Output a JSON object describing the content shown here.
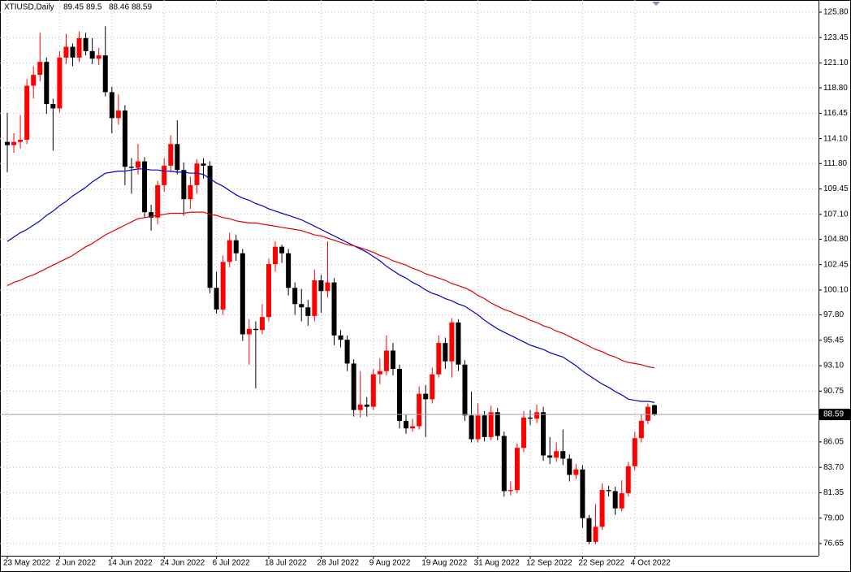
{
  "chart_data": {
    "type": "candlestick",
    "title": "XTIUSD,Daily",
    "categories": [
      "23 May 2022",
      null,
      null,
      null,
      null,
      null,
      null,
      null,
      "2 Jun 2022",
      null,
      null,
      null,
      null,
      null,
      null,
      null,
      "14 Jun 2022",
      null,
      null,
      null,
      null,
      null,
      null,
      null,
      "24 Jun 2022",
      null,
      null,
      null,
      null,
      null,
      null,
      null,
      "6 Jul 2022",
      null,
      null,
      null,
      null,
      null,
      null,
      null,
      "18 Jul 2022",
      null,
      null,
      null,
      null,
      null,
      null,
      null,
      "28 Jul 2022",
      null,
      null,
      null,
      null,
      null,
      null,
      null,
      "9 Aug 2022",
      null,
      null,
      null,
      null,
      null,
      null,
      null,
      "19 Aug 2022",
      null,
      null,
      null,
      null,
      null,
      null,
      null,
      "31 Aug 2022",
      null,
      null,
      null,
      null,
      null,
      null,
      null,
      "12 Sep 2022",
      null,
      null,
      null,
      null,
      null,
      null,
      null,
      "22 Sep 2022",
      null,
      null,
      null,
      null,
      null,
      null,
      null,
      "4 Oct 2022",
      null,
      null,
      null
    ],
    "open": [
      113.8,
      113.5,
      113.8,
      114.0,
      119.0,
      120.0,
      121.2,
      117.3,
      116.9,
      121.6,
      122.6,
      121.6,
      123.4,
      122.2,
      121.5,
      121.8,
      118.4,
      116.0,
      116.7,
      111.5,
      111.4,
      112.0,
      107.3,
      106.8,
      109.8,
      111.6,
      113.6,
      111.2,
      108.5,
      109.8,
      111.8,
      111.6,
      100.3,
      98.3,
      102.7,
      104.7,
      103.5,
      96.0,
      96.5,
      96.4,
      97.6,
      102.5,
      104.1,
      103.5,
      100.3,
      98.8,
      98.5,
      97.7,
      101.0,
      100.0,
      100.8,
      95.9,
      95.5,
      93.3,
      89.0,
      89.5,
      89.3,
      92.3,
      92.6,
      94.5,
      92.8,
      88.0,
      87.3,
      87.5,
      90.5,
      90.0,
      92.3,
      95.2,
      93.5,
      97.1,
      93.2,
      88.5,
      86.3,
      88.5,
      86.5,
      88.8,
      86.6,
      81.5,
      81.6,
      85.5,
      88.3,
      88.2,
      88.8,
      84.8,
      84.6,
      85.2,
      84.5,
      83.0,
      83.5,
      79.0,
      76.8,
      78.2,
      81.6,
      81.5,
      79.9,
      81.3,
      83.8,
      86.4,
      88.0,
      89.45
    ],
    "high": [
      116.5,
      114.6,
      116.3,
      119.6,
      120.8,
      123.9,
      121.6,
      117.8,
      122.2,
      123.8,
      122.9,
      124.0,
      123.9,
      123.4,
      122.5,
      124.5,
      118.9,
      118.2,
      117.2,
      112.3,
      113.6,
      112.4,
      108.0,
      110.2,
      112.3,
      114.4,
      115.8,
      111.9,
      110.6,
      112.2,
      112.3,
      112.0,
      101.8,
      103.3,
      105.4,
      105.2,
      103.9,
      97.4,
      97.2,
      98.8,
      103.0,
      104.6,
      104.3,
      103.9,
      100.8,
      100.2,
      99.2,
      102.0,
      101.5,
      104.6,
      101.2,
      96.4,
      95.9,
      93.7,
      92.6,
      90.2,
      92.8,
      93.8,
      95.9,
      95.2,
      93.2,
      88.6,
      88.2,
      91.2,
      91.3,
      92.9,
      95.9,
      95.7,
      97.5,
      97.4,
      93.6,
      90.7,
      89.6,
      88.9,
      89.4,
      89.2,
      87.0,
      82.4,
      85.9,
      88.9,
      89.0,
      89.5,
      89.3,
      86.5,
      86.0,
      87.2,
      84.9,
      84.0,
      83.9,
      79.3,
      80.3,
      82.2,
      82.0,
      81.9,
      82.5,
      84.2,
      87.0,
      88.6,
      89.6,
      89.5
    ],
    "low": [
      111.0,
      112.8,
      113.2,
      113.6,
      117.8,
      119.4,
      116.4,
      113.0,
      116.5,
      121.0,
      120.8,
      121.2,
      121.8,
      121.0,
      120.9,
      118.0,
      114.6,
      115.4,
      109.8,
      109.0,
      110.8,
      106.8,
      105.6,
      106.2,
      109.2,
      111.0,
      110.8,
      107.0,
      107.6,
      109.0,
      110.4,
      99.8,
      97.9,
      97.8,
      102.2,
      102.8,
      95.4,
      93.2,
      91.0,
      96.0,
      97.2,
      101.8,
      102.6,
      99.6,
      97.8,
      97.2,
      96.8,
      97.2,
      98.0,
      99.4,
      95.0,
      94.8,
      92.6,
      88.4,
      88.3,
      88.4,
      89.0,
      91.4,
      92.2,
      92.2,
      87.3,
      86.8,
      87.0,
      87.2,
      86.5,
      89.6,
      92.0,
      92.8,
      92.0,
      92.6,
      88.0,
      86.0,
      86.0,
      86.1,
      86.2,
      86.2,
      81.0,
      81.1,
      81.3,
      85.1,
      87.6,
      87.8,
      84.3,
      84.0,
      84.2,
      83.9,
      82.4,
      82.6,
      78.1,
      76.6,
      76.6,
      77.9,
      81.0,
      79.3,
      79.6,
      81.0,
      83.4,
      86.0,
      87.7,
      88.46
    ],
    "close": [
      113.5,
      113.8,
      114.0,
      119.0,
      120.0,
      121.2,
      117.3,
      116.9,
      121.6,
      122.6,
      121.6,
      123.4,
      122.2,
      121.5,
      121.8,
      118.4,
      116.0,
      116.7,
      111.5,
      111.4,
      112.0,
      107.3,
      106.8,
      109.8,
      111.6,
      113.6,
      111.2,
      108.5,
      109.8,
      111.8,
      111.6,
      100.3,
      98.3,
      102.7,
      104.7,
      103.5,
      96.0,
      96.5,
      96.4,
      97.6,
      102.5,
      104.1,
      103.5,
      100.3,
      98.8,
      98.5,
      97.7,
      101.0,
      100.0,
      100.8,
      95.9,
      95.5,
      93.3,
      89.0,
      89.5,
      89.3,
      92.3,
      92.6,
      94.5,
      92.8,
      88.0,
      87.3,
      87.5,
      90.5,
      90.0,
      92.3,
      95.2,
      93.5,
      97.1,
      93.2,
      88.5,
      86.3,
      88.5,
      86.5,
      88.8,
      86.6,
      81.5,
      81.6,
      85.5,
      88.3,
      88.2,
      88.8,
      84.8,
      84.6,
      85.2,
      84.5,
      83.0,
      83.5,
      79.0,
      76.8,
      78.2,
      81.6,
      81.5,
      79.9,
      81.3,
      83.8,
      86.4,
      88.0,
      89.3,
      88.59
    ],
    "up_color": "#ff0000",
    "down_color": "#000000",
    "series": [
      {
        "color": "#0000c8",
        "values": [
          104.6,
          105.0,
          105.4,
          105.7,
          106.1,
          106.5,
          107.0,
          107.4,
          107.9,
          108.3,
          108.8,
          109.2,
          109.6,
          110.1,
          110.5,
          110.9,
          111.0,
          111.1,
          111.1,
          111.2,
          111.3,
          111.3,
          111.2,
          111.2,
          111.1,
          111.1,
          111.0,
          111.0,
          110.9,
          110.9,
          110.8,
          110.4,
          110.0,
          109.7,
          109.3,
          108.9,
          108.6,
          108.4,
          108.1,
          107.9,
          107.6,
          107.4,
          107.2,
          107.0,
          106.8,
          106.6,
          106.3,
          106.0,
          105.7,
          105.4,
          105.1,
          104.8,
          104.5,
          104.2,
          103.9,
          103.6,
          103.2,
          102.8,
          102.3,
          101.9,
          101.5,
          101.2,
          100.8,
          100.5,
          100.1,
          99.8,
          99.6,
          99.3,
          99.1,
          98.8,
          98.6,
          98.2,
          97.8,
          97.3,
          96.9,
          96.5,
          96.2,
          95.9,
          95.6,
          95.3,
          95.0,
          94.8,
          94.6,
          94.3,
          94.1,
          93.9,
          93.5,
          93.1,
          92.6,
          92.2,
          91.8,
          91.4,
          91.1,
          90.7,
          90.4,
          90.0,
          89.9,
          89.8,
          89.8,
          89.7
        ]
      },
      {
        "color": "#e00000",
        "values": [
          100.5,
          100.8,
          101.0,
          101.3,
          101.5,
          101.8,
          102.1,
          102.4,
          102.7,
          103.0,
          103.3,
          103.7,
          104.1,
          104.4,
          104.8,
          105.2,
          105.5,
          105.8,
          106.1,
          106.4,
          106.7,
          106.8,
          106.9,
          107.0,
          107.1,
          107.2,
          107.2,
          107.2,
          107.3,
          107.3,
          107.3,
          107.1,
          107.0,
          106.8,
          106.7,
          106.5,
          106.4,
          106.3,
          106.3,
          106.2,
          106.1,
          106.0,
          105.9,
          105.8,
          105.7,
          105.6,
          105.4,
          105.2,
          105.1,
          104.9,
          104.7,
          104.5,
          104.3,
          104.2,
          104.0,
          103.8,
          103.6,
          103.3,
          103.1,
          102.8,
          102.6,
          102.4,
          102.1,
          101.9,
          101.6,
          101.4,
          101.2,
          101.0,
          100.7,
          100.5,
          100.3,
          100.0,
          99.6,
          99.3,
          98.9,
          98.6,
          98.3,
          98.1,
          97.8,
          97.6,
          97.3,
          97.1,
          96.8,
          96.6,
          96.3,
          96.1,
          95.8,
          95.5,
          95.2,
          94.9,
          94.6,
          94.4,
          94.1,
          93.9,
          93.6,
          93.4,
          93.3,
          93.2,
          93.0,
          92.9
        ]
      }
    ],
    "ylim": [
      75.52,
      126.55
    ],
    "yticks": [
      {
        "value": 125.8,
        "label": "125.80"
      },
      {
        "value": 123.45,
        "label": "123.45"
      },
      {
        "value": 121.1,
        "label": "121.10"
      },
      {
        "value": 118.8,
        "label": "118.80"
      },
      {
        "value": 116.45,
        "label": "116.45"
      },
      {
        "value": 114.1,
        "label": "114.10"
      },
      {
        "value": 111.8,
        "label": "111.80"
      },
      {
        "value": 109.45,
        "label": "109.45"
      },
      {
        "value": 107.1,
        "label": "107.10"
      },
      {
        "value": 104.8,
        "label": "104.80"
      },
      {
        "value": 102.45,
        "label": "102.45"
      },
      {
        "value": 100.1,
        "label": "100.10"
      },
      {
        "value": 97.8,
        "label": "97.80"
      },
      {
        "value": 95.45,
        "label": "95.45"
      },
      {
        "value": 93.1,
        "label": "93.10"
      },
      {
        "value": 90.75,
        "label": "90.75"
      },
      {
        "value": 86.05,
        "label": "86.05"
      },
      {
        "value": 83.7,
        "label": "83.70"
      },
      {
        "value": 81.35,
        "label": "81.35"
      },
      {
        "value": 79,
        "label": "79.00"
      },
      {
        "value": 76.65,
        "label": "76.65"
      }
    ],
    "grid": true
  }
}
